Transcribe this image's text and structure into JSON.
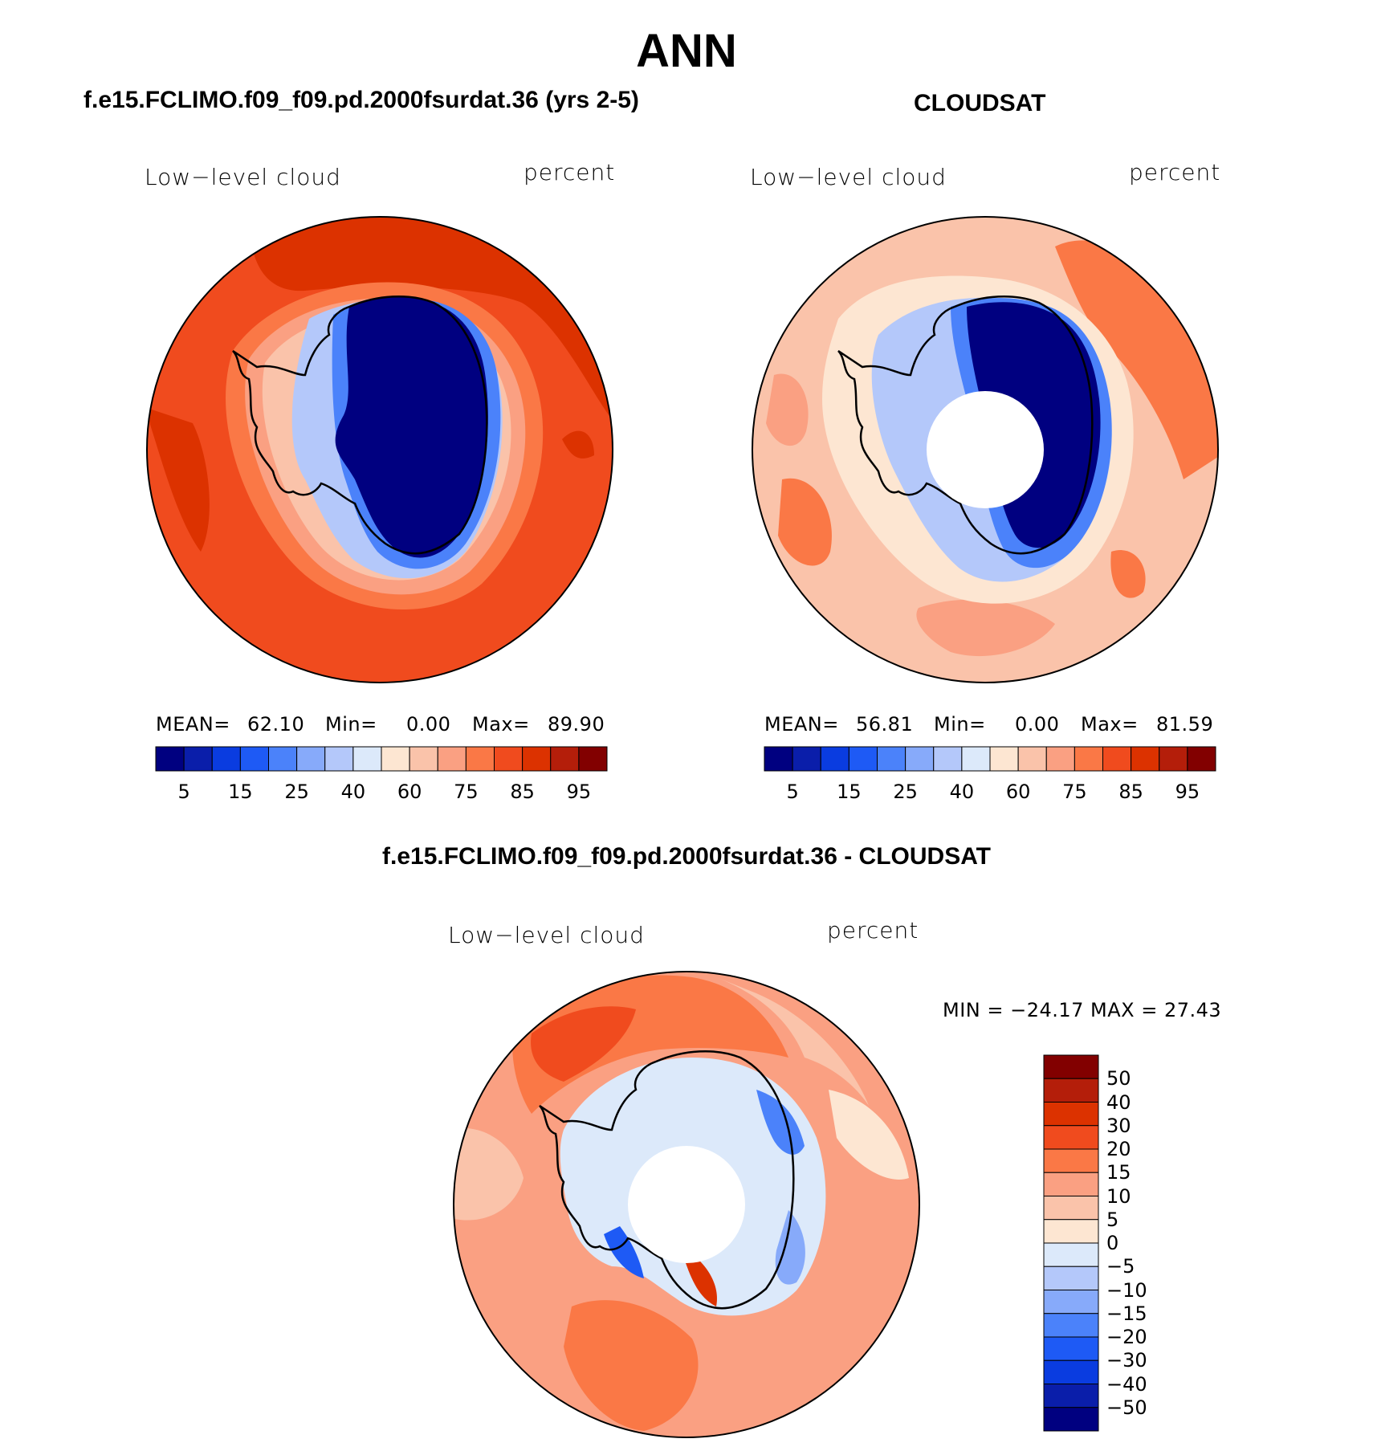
{
  "title": "ANN",
  "colors": {
    "seq": [
      "#000080",
      "#0a1eaa",
      "#0a3ce0",
      "#1e5af5",
      "#4b82fa",
      "#87aafa",
      "#b4c8fa",
      "#dce9fa",
      "#fde6d2",
      "#fac3aa",
      "#faa082",
      "#fa7846",
      "#f04b1e",
      "#dc3200",
      "#b41e0a",
      "#820000"
    ],
    "div": [
      "#820000",
      "#b41e0a",
      "#dc3200",
      "#f04b1e",
      "#fa7846",
      "#faa082",
      "#fac3aa",
      "#fde6d2",
      "#dce9fa",
      "#b4c8fa",
      "#87aafa",
      "#4b82fa",
      "#1e5af5",
      "#0a3ce0",
      "#0a1eaa",
      "#000080"
    ]
  },
  "panels": [
    {
      "id": "model",
      "title": "f.e15.FCLIMO.f09_f09.pd.2000fsurdat.36 (yrs 2-5)",
      "variable": "Low−level cloud",
      "units": "percent",
      "mean_label": "MEAN=",
      "mean": "62.10",
      "min_label": "Min=",
      "min": "0.00",
      "max_label": "Max=",
      "max": "89.90",
      "colorbar_ticks": [
        "5",
        "15",
        "25",
        "40",
        "60",
        "75",
        "85",
        "95"
      ]
    },
    {
      "id": "obs",
      "title": "CLOUDSAT",
      "variable": "Low−level cloud",
      "units": "percent",
      "mean_label": "MEAN=",
      "mean": "56.81",
      "min_label": "Min=",
      "min": "0.00",
      "max_label": "Max=",
      "max": "81.59",
      "colorbar_ticks": [
        "5",
        "15",
        "25",
        "40",
        "60",
        "75",
        "85",
        "95"
      ]
    },
    {
      "id": "diff",
      "title": "f.e15.FCLIMO.f09_f09.pd.2000fsurdat.36 - CLOUDSAT",
      "variable": "Low−level cloud",
      "units": "percent",
      "minmax_text": "MIN = −24.17 MAX =   27.43",
      "colorbar_ticks": [
        "50",
        "40",
        "30",
        "20",
        "15",
        "10",
        "5",
        "0",
        "−5",
        "−10",
        "−15",
        "−20",
        "−30",
        "−40",
        "−50"
      ]
    }
  ],
  "chart_data": [
    {
      "type": "heatmap",
      "projection": "south polar stereographic",
      "title": "f.e15.FCLIMO.f09_f09.pd.2000fsurdat.36 (yrs 2-5)",
      "variable": "Low-level cloud",
      "units": "percent",
      "contour_levels": [
        5,
        10,
        15,
        20,
        25,
        30,
        40,
        50,
        60,
        70,
        75,
        80,
        85,
        90,
        95
      ],
      "stats": {
        "mean": 62.1,
        "min": 0.0,
        "max": 89.9
      }
    },
    {
      "type": "heatmap",
      "projection": "south polar stereographic",
      "title": "CLOUDSAT",
      "variable": "Low-level cloud",
      "units": "percent",
      "contour_levels": [
        5,
        10,
        15,
        20,
        25,
        30,
        40,
        50,
        60,
        70,
        75,
        80,
        85,
        90,
        95
      ],
      "stats": {
        "mean": 56.81,
        "min": 0.0,
        "max": 81.59
      }
    },
    {
      "type": "heatmap",
      "projection": "south polar stereographic",
      "title": "f.e15.FCLIMO.f09_f09.pd.2000fsurdat.36 - CLOUDSAT",
      "variable": "Low-level cloud",
      "units": "percent",
      "contour_levels": [
        -50,
        -40,
        -30,
        -20,
        -15,
        -10,
        -5,
        0,
        5,
        10,
        15,
        20,
        30,
        40,
        50
      ],
      "stats": {
        "min": -24.17,
        "max": 27.43
      }
    }
  ]
}
